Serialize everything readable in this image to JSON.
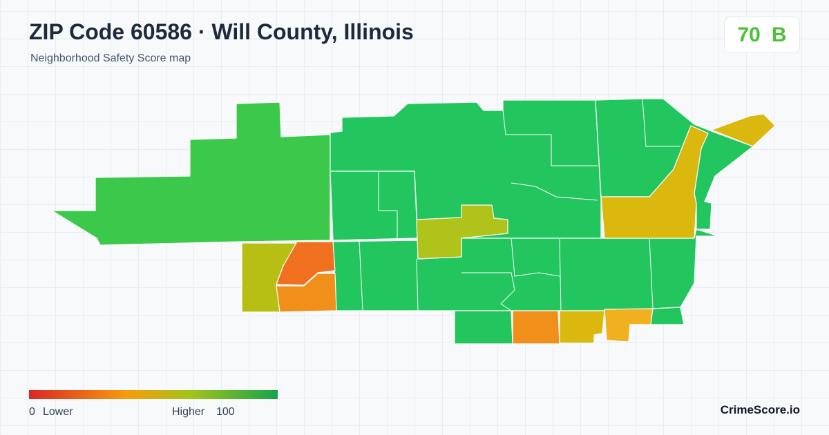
{
  "header": {
    "title": "ZIP Code 60586 · Will County, Illinois",
    "subtitle": "Neighborhood Safety Score map"
  },
  "score": {
    "value": 70,
    "grade": "B"
  },
  "legend": {
    "min": 0,
    "low_label": "Lower",
    "high_label": "Higher",
    "max": 100
  },
  "brand": "CrimeScore.io"
}
